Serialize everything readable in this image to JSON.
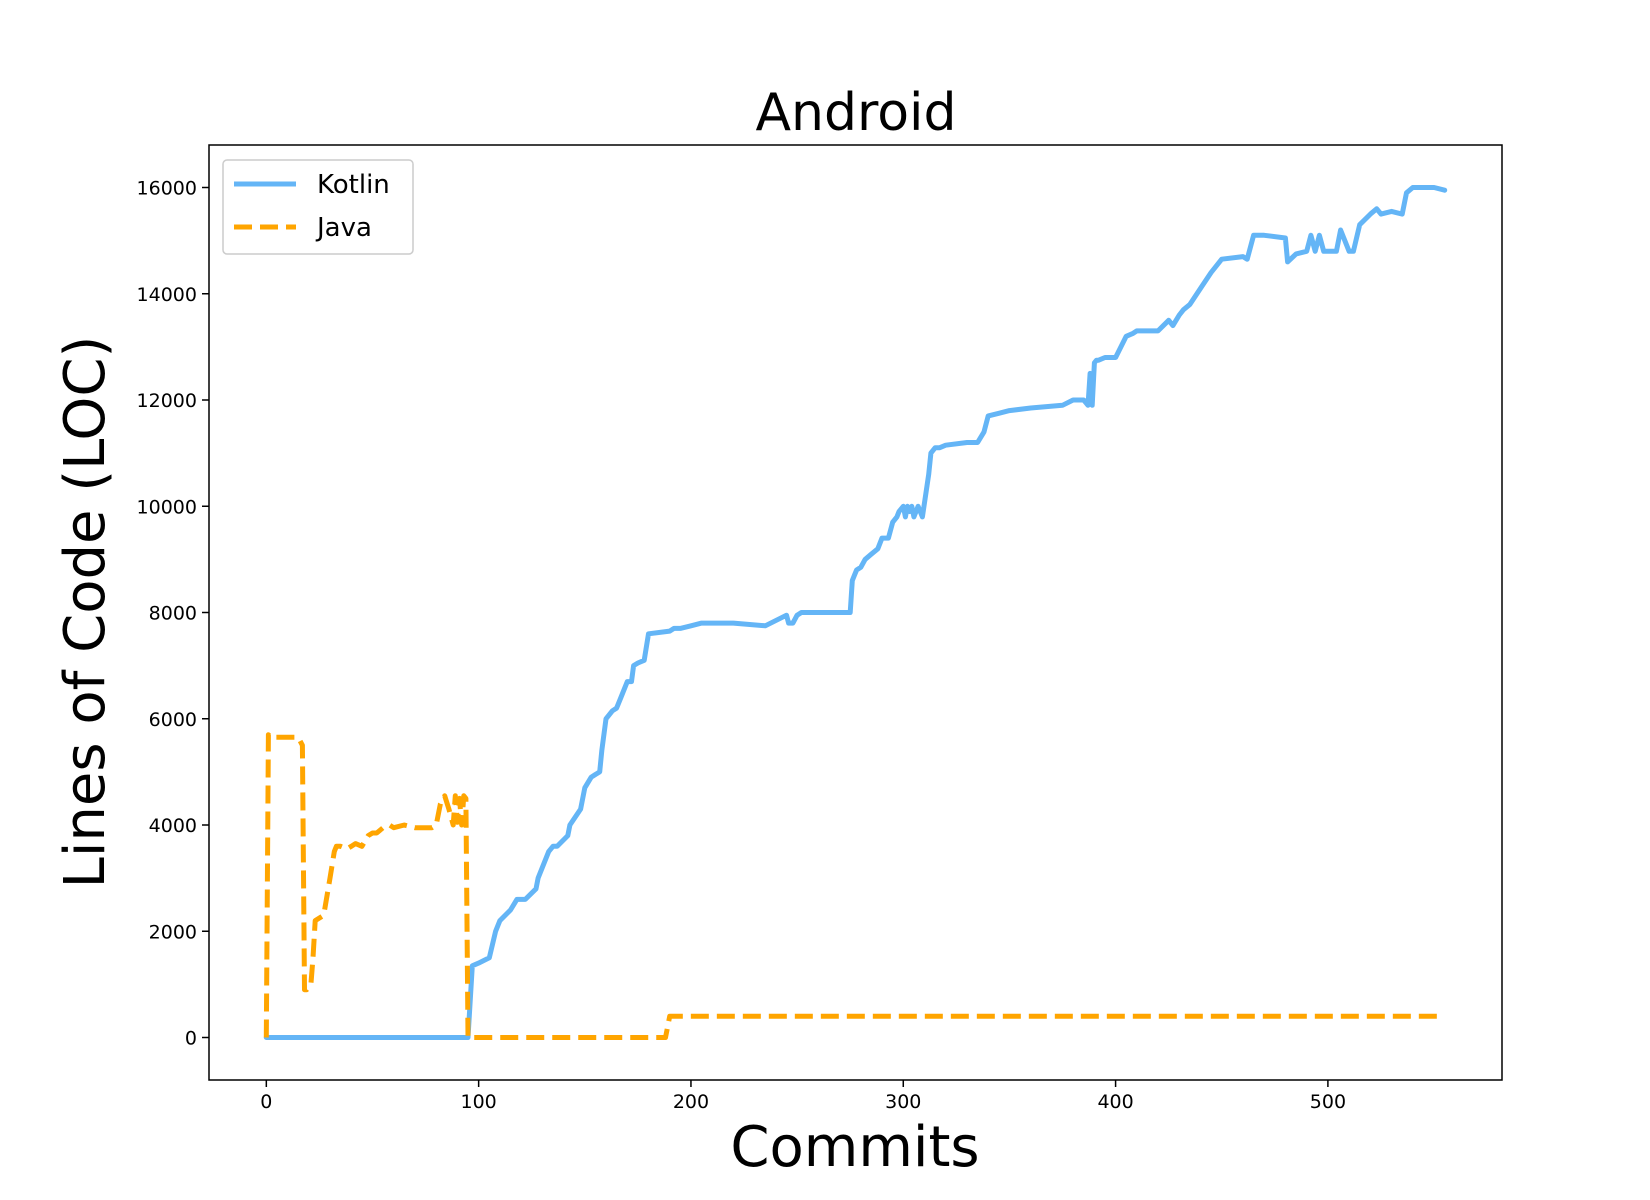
{
  "chart_data": {
    "type": "line",
    "title": "Android",
    "xlabel": "Commits",
    "ylabel": "Lines of Code (LOC)",
    "xlim": [
      -27,
      582
    ],
    "ylim": [
      -800,
      16800
    ],
    "xticks": [
      0,
      100,
      200,
      300,
      400,
      500
    ],
    "yticks": [
      0,
      2000,
      4000,
      6000,
      8000,
      10000,
      12000,
      14000,
      16000
    ],
    "grid": false,
    "legend_position": "top-left",
    "series": [
      {
        "name": "Kotlin",
        "color": "#64b5f6",
        "style": "solid",
        "x": [
          0,
          95,
          97,
          100,
          105,
          108,
          110,
          115,
          118,
          122,
          127,
          128,
          133,
          135,
          137,
          142,
          143,
          148,
          150,
          153,
          155,
          157,
          158,
          160,
          162,
          163,
          165,
          167,
          170,
          172,
          173,
          175,
          178,
          180,
          190,
          192,
          195,
          200,
          205,
          210,
          220,
          235,
          245,
          246,
          248,
          250,
          252,
          255,
          260,
          275,
          276,
          277,
          278,
          280,
          282,
          285,
          288,
          290,
          293,
          295,
          297,
          298,
          300,
          301,
          302,
          303,
          304,
          305,
          307,
          309,
          312,
          313,
          315,
          317,
          320,
          330,
          335,
          338,
          340,
          345,
          350,
          360,
          375,
          380,
          385,
          387,
          388,
          389,
          390,
          391,
          392,
          395,
          400,
          405,
          408,
          410,
          420,
          425,
          427,
          430,
          432,
          435,
          440,
          445,
          450,
          460,
          462,
          465,
          470,
          480,
          481,
          485,
          490,
          492,
          494,
          496,
          498,
          500,
          504,
          506,
          510,
          512,
          515,
          520,
          523,
          525,
          530,
          535,
          537,
          540,
          545,
          550,
          555
        ],
        "y": [
          0,
          0,
          1350,
          1400,
          1500,
          2000,
          2200,
          2400,
          2600,
          2600,
          2800,
          3000,
          3500,
          3600,
          3600,
          3800,
          4000,
          4300,
          4700,
          4900,
          4950,
          5000,
          5400,
          6000,
          6100,
          6150,
          6200,
          6400,
          6700,
          6700,
          7000,
          7050,
          7100,
          7600,
          7650,
          7700,
          7700,
          7750,
          7800,
          7800,
          7800,
          7750,
          7950,
          7800,
          7800,
          7950,
          8000,
          8000,
          8000,
          8000,
          8600,
          8700,
          8800,
          8850,
          9000,
          9100,
          9200,
          9400,
          9400,
          9700,
          9800,
          9900,
          10000,
          9800,
          10000,
          9900,
          10000,
          9800,
          10000,
          9800,
          10600,
          11000,
          11100,
          11100,
          11150,
          11200,
          11200,
          11400,
          11700,
          11750,
          11800,
          11850,
          11900,
          12000,
          12000,
          11900,
          12500,
          11900,
          12700,
          12750,
          12750,
          12800,
          12800,
          13200,
          13250,
          13300,
          13300,
          13500,
          13400,
          13600,
          13700,
          13800,
          14100,
          14400,
          14650,
          14700,
          14650,
          15100,
          15100,
          15050,
          14600,
          14750,
          14800,
          15100,
          14800,
          15100,
          14800,
          14800,
          14800,
          15200,
          14800,
          14800,
          15300,
          15500,
          15600,
          15500,
          15550,
          15500,
          15900,
          16000,
          16000,
          16000,
          15950
        ]
      },
      {
        "name": "Java",
        "color": "#ffa500",
        "style": "dashed",
        "x": [
          0,
          1,
          2,
          3,
          15,
          17,
          18,
          19,
          21,
          22,
          23,
          25,
          27,
          30,
          32,
          33,
          35,
          38,
          40,
          42,
          45,
          48,
          50,
          52,
          55,
          58,
          60,
          65,
          70,
          75,
          78,
          80,
          81,
          82,
          84,
          86,
          88,
          89,
          90,
          91,
          92,
          93,
          94,
          95,
          96,
          97,
          100,
          120,
          140,
          160,
          180,
          188,
          189,
          190,
          192,
          200,
          250,
          300,
          400,
          500,
          554
        ],
        "y": [
          0,
          5700,
          5650,
          5650,
          5650,
          5500,
          900,
          900,
          1000,
          1500,
          2200,
          2250,
          2300,
          3000,
          3500,
          3600,
          3600,
          3550,
          3600,
          3650,
          3600,
          3800,
          3850,
          3850,
          3950,
          4000,
          3950,
          4000,
          3950,
          3950,
          3950,
          4000,
          4200,
          4400,
          4550,
          4300,
          4000,
          4550,
          4050,
          4500,
          4000,
          4550,
          4500,
          0,
          0,
          0,
          0,
          0,
          0,
          0,
          0,
          0,
          200,
          400,
          400,
          400,
          400,
          400,
          400,
          400,
          400
        ]
      }
    ]
  }
}
